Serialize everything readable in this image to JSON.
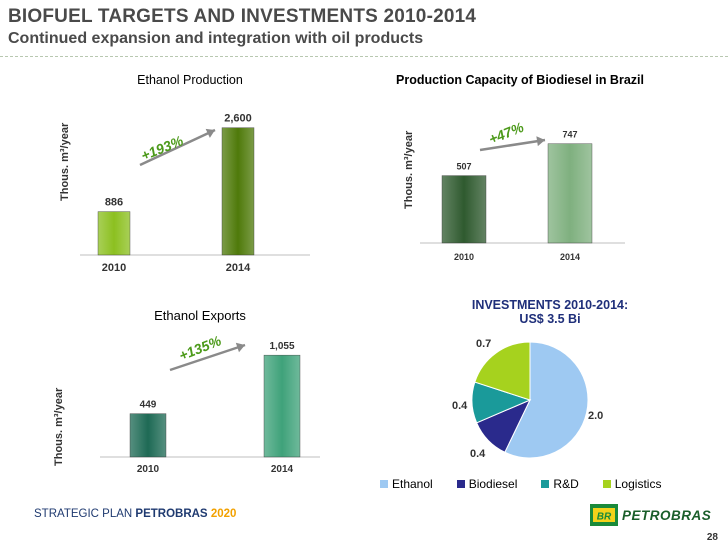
{
  "header": {
    "title": "BIOFUEL TARGETS AND INVESTMENTS 2010-2014",
    "subtitle": "Continued expansion and integration with oil products"
  },
  "chart_data": [
    {
      "id": "ethanol-production",
      "type": "bar",
      "title": "Ethanol Production",
      "ylabel": "Thous. m³/year",
      "categories": [
        "2010",
        "2014"
      ],
      "values": [
        886,
        2600
      ],
      "value_labels": [
        "886",
        "2,600"
      ],
      "growth_label": "+193%",
      "ylim": [
        0,
        2900
      ],
      "colors": [
        "#8cc020",
        "#4f7a0a"
      ]
    },
    {
      "id": "biodiesel-capacity",
      "type": "bar",
      "title": "Production Capacity of Biodiesel in Brazil",
      "ylabel": "Thous. m³/year",
      "categories": [
        "2010",
        "2014"
      ],
      "values": [
        507,
        747
      ],
      "value_labels": [
        "507",
        "747"
      ],
      "growth_label": "+47%",
      "ylim": [
        0,
        850
      ],
      "colors": [
        "#2f5a2f",
        "#7fb07f"
      ]
    },
    {
      "id": "ethanol-exports",
      "type": "bar",
      "title": "Ethanol Exports",
      "ylabel": "Thous. m³/year",
      "categories": [
        "2010",
        "2014"
      ],
      "values": [
        449,
        1055
      ],
      "value_labels": [
        "449",
        "1,055"
      ],
      "growth_label": "+135%",
      "ylim": [
        0,
        1160
      ],
      "colors": [
        "#1e6a55",
        "#3fa27a"
      ]
    },
    {
      "id": "investments",
      "type": "pie",
      "title_line1": "INVESTMENTS 2010-2014:",
      "title_line2": "US$ 3.5 Bi",
      "labels": [
        "Ethanol",
        "Biodiesel",
        "R&D",
        "Logistics"
      ],
      "values": [
        2.0,
        0.4,
        0.4,
        0.7
      ],
      "value_labels": [
        "2.0",
        "0.4",
        "0.4",
        "0.7"
      ],
      "colors": [
        "#9ec9f2",
        "#2a2a8c",
        "#1a9a9a",
        "#a6d21e"
      ]
    }
  ],
  "footer": {
    "plan_prefix": "STRATEGIC PLAN",
    "plan_company": "PETROBRAS",
    "plan_year": "2020",
    "logo_text": "PETROBRAS",
    "logo_badge": "BR",
    "page_number": "28"
  }
}
